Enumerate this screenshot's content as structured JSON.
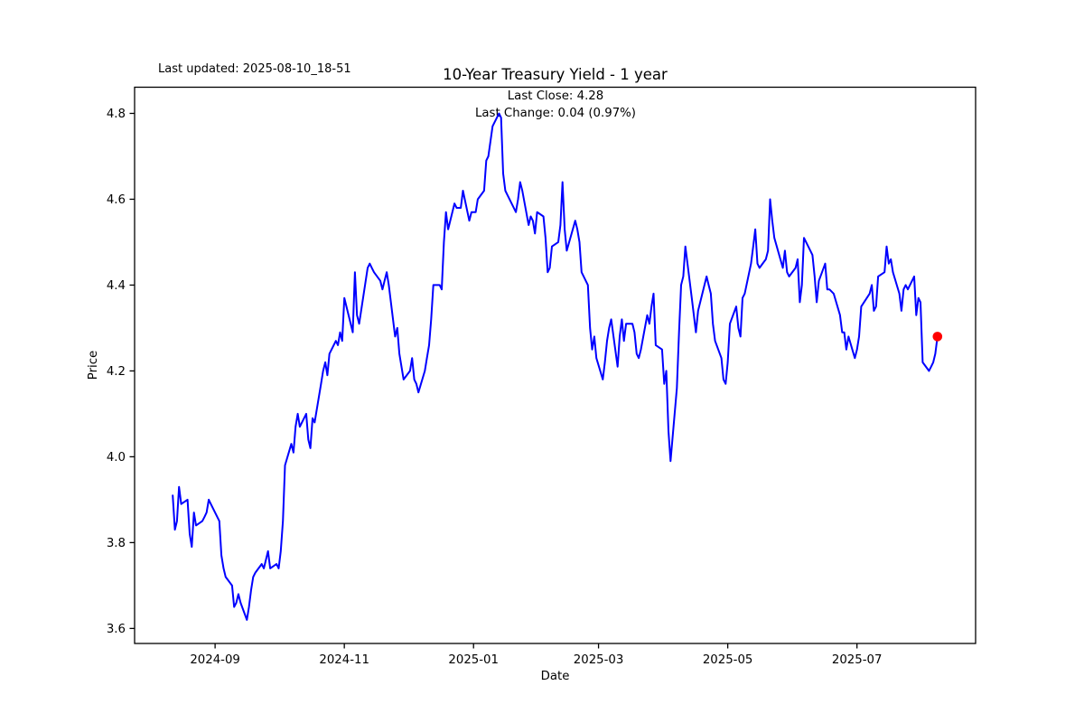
{
  "header": {
    "last_updated": "Last updated: 2025-08-10_18-51",
    "title": "10-Year Treasury Yield - 1 year",
    "subtitle_line1": "Last Close: 4.28",
    "subtitle_line2": "Last Change: 0.04 (0.97%)"
  },
  "chart_data": {
    "type": "line",
    "title": "10-Year Treasury Yield - 1 year",
    "xlabel": "Date",
    "ylabel": "Price",
    "legend": "none",
    "grid": false,
    "line_color": "#0000ff",
    "marker_color": "#ff0000",
    "last_close": 4.28,
    "last_change": 0.04,
    "last_change_pct": "0.97%",
    "ylim": [
      3.565,
      4.861
    ],
    "xlim": [
      "2024-07-25",
      "2025-08-26"
    ],
    "y_ticks": [
      {
        "label": "3.6",
        "value": 3.6
      },
      {
        "label": "3.8",
        "value": 3.8
      },
      {
        "label": "4.0",
        "value": 4.0
      },
      {
        "label": "4.2",
        "value": 4.2
      },
      {
        "label": "4.4",
        "value": 4.4
      },
      {
        "label": "4.6",
        "value": 4.6
      },
      {
        "label": "4.8",
        "value": 4.8
      }
    ],
    "x_ticks": [
      {
        "label": "2024-09",
        "date": "2024-09-01"
      },
      {
        "label": "2024-11",
        "date": "2024-11-01"
      },
      {
        "label": "2025-01",
        "date": "2025-01-01"
      },
      {
        "label": "2025-03",
        "date": "2025-03-01"
      },
      {
        "label": "2025-05",
        "date": "2025-05-01"
      },
      {
        "label": "2025-07",
        "date": "2025-07-01"
      }
    ],
    "series": [
      {
        "name": "10-Year Treasury Yield",
        "points": [
          [
            "2024-08-12",
            3.91
          ],
          [
            "2024-08-13",
            3.83
          ],
          [
            "2024-08-14",
            3.85
          ],
          [
            "2024-08-15",
            3.93
          ],
          [
            "2024-08-16",
            3.89
          ],
          [
            "2024-08-19",
            3.9
          ],
          [
            "2024-08-20",
            3.82
          ],
          [
            "2024-08-21",
            3.79
          ],
          [
            "2024-08-22",
            3.87
          ],
          [
            "2024-08-23",
            3.84
          ],
          [
            "2024-08-26",
            3.85
          ],
          [
            "2024-08-27",
            3.86
          ],
          [
            "2024-08-28",
            3.87
          ],
          [
            "2024-08-29",
            3.9
          ],
          [
            "2024-08-30",
            3.89
          ],
          [
            "2024-09-03",
            3.85
          ],
          [
            "2024-09-04",
            3.77
          ],
          [
            "2024-09-05",
            3.74
          ],
          [
            "2024-09-06",
            3.72
          ],
          [
            "2024-09-09",
            3.7
          ],
          [
            "2024-09-10",
            3.65
          ],
          [
            "2024-09-11",
            3.66
          ],
          [
            "2024-09-12",
            3.68
          ],
          [
            "2024-09-13",
            3.66
          ],
          [
            "2024-09-16",
            3.62
          ],
          [
            "2024-09-17",
            3.65
          ],
          [
            "2024-09-18",
            3.69
          ],
          [
            "2024-09-19",
            3.72
          ],
          [
            "2024-09-20",
            3.73
          ],
          [
            "2024-09-23",
            3.75
          ],
          [
            "2024-09-24",
            3.74
          ],
          [
            "2024-09-25",
            3.76
          ],
          [
            "2024-09-26",
            3.78
          ],
          [
            "2024-09-27",
            3.74
          ],
          [
            "2024-09-30",
            3.75
          ],
          [
            "2024-10-01",
            3.74
          ],
          [
            "2024-10-02",
            3.78
          ],
          [
            "2024-10-03",
            3.85
          ],
          [
            "2024-10-04",
            3.98
          ],
          [
            "2024-10-07",
            4.03
          ],
          [
            "2024-10-08",
            4.01
          ],
          [
            "2024-10-09",
            4.07
          ],
          [
            "2024-10-10",
            4.1
          ],
          [
            "2024-10-11",
            4.07
          ],
          [
            "2024-10-14",
            4.1
          ],
          [
            "2024-10-15",
            4.04
          ],
          [
            "2024-10-16",
            4.02
          ],
          [
            "2024-10-17",
            4.09
          ],
          [
            "2024-10-18",
            4.08
          ],
          [
            "2024-10-21",
            4.17
          ],
          [
            "2024-10-22",
            4.2
          ],
          [
            "2024-10-23",
            4.22
          ],
          [
            "2024-10-24",
            4.19
          ],
          [
            "2024-10-25",
            4.24
          ],
          [
            "2024-10-28",
            4.27
          ],
          [
            "2024-10-29",
            4.26
          ],
          [
            "2024-10-30",
            4.29
          ],
          [
            "2024-10-31",
            4.27
          ],
          [
            "2024-11-01",
            4.37
          ],
          [
            "2024-11-04",
            4.31
          ],
          [
            "2024-11-05",
            4.29
          ],
          [
            "2024-11-06",
            4.43
          ],
          [
            "2024-11-07",
            4.33
          ],
          [
            "2024-11-08",
            4.31
          ],
          [
            "2024-11-12",
            4.44
          ],
          [
            "2024-11-13",
            4.45
          ],
          [
            "2024-11-14",
            4.44
          ],
          [
            "2024-11-15",
            4.43
          ],
          [
            "2024-11-18",
            4.41
          ],
          [
            "2024-11-19",
            4.39
          ],
          [
            "2024-11-20",
            4.41
          ],
          [
            "2024-11-21",
            4.43
          ],
          [
            "2024-11-22",
            4.4
          ],
          [
            "2024-11-25",
            4.28
          ],
          [
            "2024-11-26",
            4.3
          ],
          [
            "2024-11-27",
            4.24
          ],
          [
            "2024-11-29",
            4.18
          ],
          [
            "2024-12-02",
            4.2
          ],
          [
            "2024-12-03",
            4.23
          ],
          [
            "2024-12-04",
            4.18
          ],
          [
            "2024-12-05",
            4.17
          ],
          [
            "2024-12-06",
            4.15
          ],
          [
            "2024-12-09",
            4.2
          ],
          [
            "2024-12-10",
            4.23
          ],
          [
            "2024-12-11",
            4.26
          ],
          [
            "2024-12-12",
            4.32
          ],
          [
            "2024-12-13",
            4.4
          ],
          [
            "2024-12-16",
            4.4
          ],
          [
            "2024-12-17",
            4.39
          ],
          [
            "2024-12-18",
            4.5
          ],
          [
            "2024-12-19",
            4.57
          ],
          [
            "2024-12-20",
            4.53
          ],
          [
            "2024-12-23",
            4.59
          ],
          [
            "2024-12-24",
            4.58
          ],
          [
            "2024-12-26",
            4.58
          ],
          [
            "2024-12-27",
            4.62
          ],
          [
            "2024-12-30",
            4.55
          ],
          [
            "2024-12-31",
            4.57
          ],
          [
            "2025-01-02",
            4.57
          ],
          [
            "2025-01-03",
            4.6
          ],
          [
            "2025-01-06",
            4.62
          ],
          [
            "2025-01-07",
            4.69
          ],
          [
            "2025-01-08",
            4.7
          ],
          [
            "2025-01-10",
            4.77
          ],
          [
            "2025-01-13",
            4.8
          ],
          [
            "2025-01-14",
            4.79
          ],
          [
            "2025-01-15",
            4.66
          ],
          [
            "2025-01-16",
            4.62
          ],
          [
            "2025-01-17",
            4.61
          ],
          [
            "2025-01-21",
            4.57
          ],
          [
            "2025-01-22",
            4.6
          ],
          [
            "2025-01-23",
            4.64
          ],
          [
            "2025-01-24",
            4.62
          ],
          [
            "2025-01-27",
            4.54
          ],
          [
            "2025-01-28",
            4.56
          ],
          [
            "2025-01-29",
            4.55
          ],
          [
            "2025-01-30",
            4.52
          ],
          [
            "2025-01-31",
            4.57
          ],
          [
            "2025-02-03",
            4.56
          ],
          [
            "2025-02-04",
            4.51
          ],
          [
            "2025-02-05",
            4.43
          ],
          [
            "2025-02-06",
            4.44
          ],
          [
            "2025-02-07",
            4.49
          ],
          [
            "2025-02-10",
            4.5
          ],
          [
            "2025-02-11",
            4.54
          ],
          [
            "2025-02-12",
            4.64
          ],
          [
            "2025-02-13",
            4.53
          ],
          [
            "2025-02-14",
            4.48
          ],
          [
            "2025-02-18",
            4.55
          ],
          [
            "2025-02-19",
            4.53
          ],
          [
            "2025-02-20",
            4.5
          ],
          [
            "2025-02-21",
            4.43
          ],
          [
            "2025-02-24",
            4.4
          ],
          [
            "2025-02-25",
            4.3
          ],
          [
            "2025-02-26",
            4.25
          ],
          [
            "2025-02-27",
            4.28
          ],
          [
            "2025-02-28",
            4.23
          ],
          [
            "2025-03-03",
            4.18
          ],
          [
            "2025-03-04",
            4.22
          ],
          [
            "2025-03-05",
            4.27
          ],
          [
            "2025-03-06",
            4.3
          ],
          [
            "2025-03-07",
            4.32
          ],
          [
            "2025-03-10",
            4.21
          ],
          [
            "2025-03-11",
            4.28
          ],
          [
            "2025-03-12",
            4.32
          ],
          [
            "2025-03-13",
            4.27
          ],
          [
            "2025-03-14",
            4.31
          ],
          [
            "2025-03-17",
            4.31
          ],
          [
            "2025-03-18",
            4.29
          ],
          [
            "2025-03-19",
            4.24
          ],
          [
            "2025-03-20",
            4.23
          ],
          [
            "2025-03-21",
            4.25
          ],
          [
            "2025-03-24",
            4.33
          ],
          [
            "2025-03-25",
            4.31
          ],
          [
            "2025-03-26",
            4.35
          ],
          [
            "2025-03-27",
            4.38
          ],
          [
            "2025-03-28",
            4.26
          ],
          [
            "2025-03-31",
            4.25
          ],
          [
            "2025-04-01",
            4.17
          ],
          [
            "2025-04-02",
            4.2
          ],
          [
            "2025-04-03",
            4.06
          ],
          [
            "2025-04-04",
            3.99
          ],
          [
            "2025-04-07",
            4.16
          ],
          [
            "2025-04-08",
            4.29
          ],
          [
            "2025-04-09",
            4.4
          ],
          [
            "2025-04-10",
            4.42
          ],
          [
            "2025-04-11",
            4.49
          ],
          [
            "2025-04-14",
            4.37
          ],
          [
            "2025-04-15",
            4.33
          ],
          [
            "2025-04-16",
            4.29
          ],
          [
            "2025-04-17",
            4.34
          ],
          [
            "2025-04-21",
            4.42
          ],
          [
            "2025-04-22",
            4.4
          ],
          [
            "2025-04-23",
            4.38
          ],
          [
            "2025-04-24",
            4.31
          ],
          [
            "2025-04-25",
            4.27
          ],
          [
            "2025-04-28",
            4.23
          ],
          [
            "2025-04-29",
            4.18
          ],
          [
            "2025-04-30",
            4.17
          ],
          [
            "2025-05-01",
            4.22
          ],
          [
            "2025-05-02",
            4.31
          ],
          [
            "2025-05-05",
            4.35
          ],
          [
            "2025-05-06",
            4.3
          ],
          [
            "2025-05-07",
            4.28
          ],
          [
            "2025-05-08",
            4.37
          ],
          [
            "2025-05-09",
            4.38
          ],
          [
            "2025-05-12",
            4.45
          ],
          [
            "2025-05-13",
            4.49
          ],
          [
            "2025-05-14",
            4.53
          ],
          [
            "2025-05-15",
            4.45
          ],
          [
            "2025-05-16",
            4.44
          ],
          [
            "2025-05-19",
            4.46
          ],
          [
            "2025-05-20",
            4.48
          ],
          [
            "2025-05-21",
            4.6
          ],
          [
            "2025-05-22",
            4.55
          ],
          [
            "2025-05-23",
            4.51
          ],
          [
            "2025-05-27",
            4.44
          ],
          [
            "2025-05-28",
            4.48
          ],
          [
            "2025-05-29",
            4.43
          ],
          [
            "2025-05-30",
            4.42
          ],
          [
            "2025-06-02",
            4.44
          ],
          [
            "2025-06-03",
            4.46
          ],
          [
            "2025-06-04",
            4.36
          ],
          [
            "2025-06-05",
            4.4
          ],
          [
            "2025-06-06",
            4.51
          ],
          [
            "2025-06-09",
            4.48
          ],
          [
            "2025-06-10",
            4.47
          ],
          [
            "2025-06-11",
            4.42
          ],
          [
            "2025-06-12",
            4.36
          ],
          [
            "2025-06-13",
            4.41
          ],
          [
            "2025-06-16",
            4.45
          ],
          [
            "2025-06-17",
            4.39
          ],
          [
            "2025-06-18",
            4.39
          ],
          [
            "2025-06-20",
            4.38
          ],
          [
            "2025-06-23",
            4.33
          ],
          [
            "2025-06-24",
            4.29
          ],
          [
            "2025-06-25",
            4.29
          ],
          [
            "2025-06-26",
            4.25
          ],
          [
            "2025-06-27",
            4.28
          ],
          [
            "2025-06-30",
            4.23
          ],
          [
            "2025-07-01",
            4.25
          ],
          [
            "2025-07-02",
            4.28
          ],
          [
            "2025-07-03",
            4.35
          ],
          [
            "2025-07-07",
            4.38
          ],
          [
            "2025-07-08",
            4.4
          ],
          [
            "2025-07-09",
            4.34
          ],
          [
            "2025-07-10",
            4.35
          ],
          [
            "2025-07-11",
            4.42
          ],
          [
            "2025-07-14",
            4.43
          ],
          [
            "2025-07-15",
            4.49
          ],
          [
            "2025-07-16",
            4.45
          ],
          [
            "2025-07-17",
            4.46
          ],
          [
            "2025-07-18",
            4.43
          ],
          [
            "2025-07-21",
            4.38
          ],
          [
            "2025-07-22",
            4.34
          ],
          [
            "2025-07-23",
            4.39
          ],
          [
            "2025-07-24",
            4.4
          ],
          [
            "2025-07-25",
            4.39
          ],
          [
            "2025-07-28",
            4.42
          ],
          [
            "2025-07-29",
            4.33
          ],
          [
            "2025-07-30",
            4.37
          ],
          [
            "2025-07-31",
            4.36
          ],
          [
            "2025-08-01",
            4.22
          ],
          [
            "2025-08-04",
            4.2
          ],
          [
            "2025-08-05",
            4.21
          ],
          [
            "2025-08-06",
            4.22
          ],
          [
            "2025-08-07",
            4.24
          ],
          [
            "2025-08-08",
            4.28
          ]
        ]
      }
    ]
  }
}
